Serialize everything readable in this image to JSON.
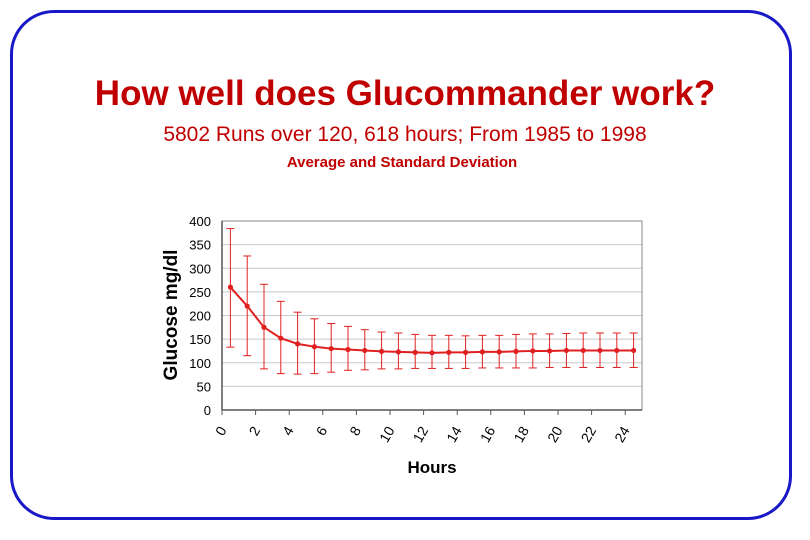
{
  "slide": {
    "title": "How well does Glucommander work?",
    "subtitle": "5802 Runs over 120, 618 hours;  From 1985 to 1998",
    "caption": "Average and Standard Deviation"
  },
  "colors": {
    "border": "#1818c8",
    "title": "#c00000",
    "series": "#e02020",
    "grid": "#c8c8c8",
    "axis": "#888888",
    "text": "#000000"
  },
  "chart_data": {
    "type": "line",
    "xlabel": "Hours",
    "ylabel": "Glucose    mg/dl",
    "xlim": [
      0,
      25
    ],
    "ylim": [
      0,
      400
    ],
    "x_ticks": [
      0,
      2,
      4,
      6,
      8,
      10,
      12,
      14,
      16,
      18,
      20,
      22,
      24
    ],
    "y_ticks": [
      0,
      50,
      100,
      150,
      200,
      250,
      300,
      350,
      400
    ],
    "grid": true,
    "legend": "none",
    "series": [
      {
        "x": [
          0.5,
          1.5,
          2.5,
          3.5,
          4.5,
          5.5,
          6.5,
          7.5,
          8.5,
          9.5,
          10.5,
          11.5,
          12.5,
          13.5,
          14.5,
          15.5,
          16.5,
          17.5,
          18.5,
          19.5,
          20.5,
          21.5,
          22.5,
          23.5,
          24.5
        ],
        "values": [
          260,
          220,
          175,
          152,
          140,
          134,
          130,
          128,
          126,
          124,
          123,
          122,
          121,
          122,
          122,
          123,
          123,
          124,
          125,
          125,
          126,
          126,
          126,
          126,
          126
        ],
        "error_high": [
          384,
          326,
          266,
          230,
          207,
          193,
          183,
          177,
          170,
          165,
          163,
          160,
          158,
          158,
          157,
          158,
          158,
          160,
          161,
          161,
          162,
          163,
          163,
          163,
          163
        ],
        "error_low": [
          133,
          115,
          87,
          77,
          76,
          77,
          80,
          84,
          85,
          87,
          87,
          88,
          88,
          88,
          88,
          89,
          89,
          89,
          89,
          90,
          90,
          90,
          90,
          90,
          90
        ]
      }
    ]
  }
}
